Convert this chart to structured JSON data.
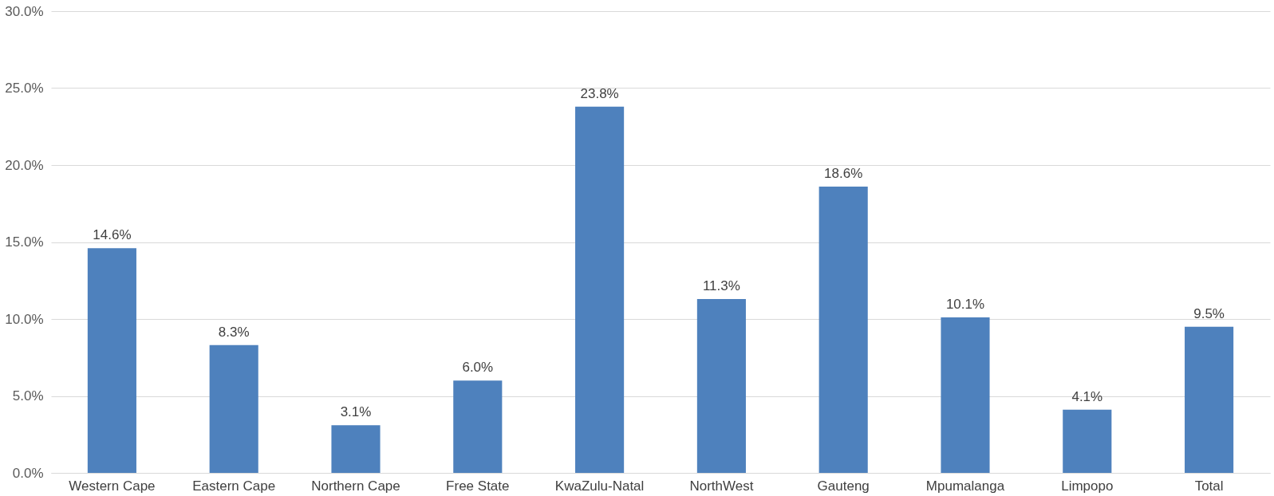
{
  "chart_data": {
    "type": "bar",
    "categories": [
      "Western Cape",
      "Eastern Cape",
      "Northern Cape",
      "Free State",
      "KwaZulu-Natal",
      "NorthWest",
      "Gauteng",
      "Mpumalanga",
      "Limpopo",
      "Total"
    ],
    "values": [
      14.6,
      8.3,
      3.1,
      6.0,
      23.8,
      11.3,
      18.6,
      10.1,
      4.1,
      9.5
    ],
    "value_labels": [
      "14.6%",
      "8.3%",
      "3.1%",
      "6.0%",
      "23.8%",
      "11.3%",
      "18.6%",
      "10.1%",
      "4.1%",
      "9.5%"
    ],
    "color": "#4e81bd",
    "ylim": [
      0,
      30
    ],
    "yticks": [
      {
        "value": 0,
        "label": "0.0%"
      },
      {
        "value": 5,
        "label": "5.0%"
      },
      {
        "value": 10,
        "label": "10.0%"
      },
      {
        "value": 15,
        "label": "15.0%"
      },
      {
        "value": 20,
        "label": "20.0%"
      },
      {
        "value": 25,
        "label": "25.0%"
      },
      {
        "value": 30,
        "label": "30.0%"
      }
    ],
    "grid": "y"
  }
}
